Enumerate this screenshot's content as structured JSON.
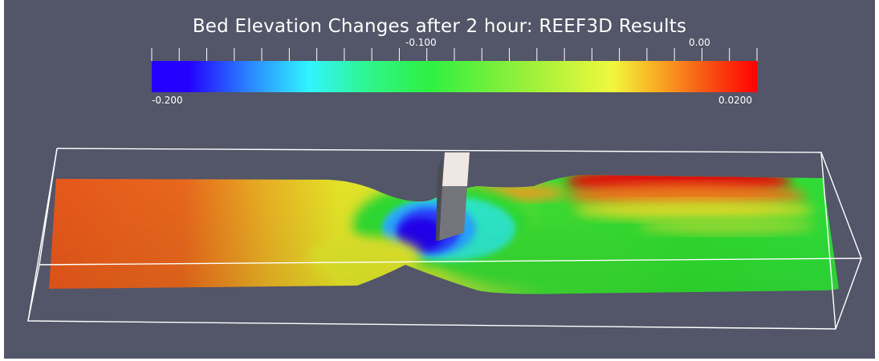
{
  "title": "Bed Elevation Changes after 2 hour: REEF3D Results",
  "colorbar": {
    "ticks_top": [
      "-0.100",
      "0.00"
    ],
    "range_labels": [
      "-0.200",
      "0.0200"
    ],
    "colors": [
      "#2200ff",
      "#2a84ff",
      "#30f5ff",
      "#2ff58a",
      "#2ef041",
      "#9af03a",
      "#f0f83d",
      "#f9b124",
      "#f75c16",
      "#ff0000"
    ]
  },
  "surface_colors": {
    "orange": "#e85a1c",
    "yellow": "#e6e626",
    "green": "#2ddc2e",
    "blue": "#2200f0",
    "red": "#d80a0a"
  }
}
